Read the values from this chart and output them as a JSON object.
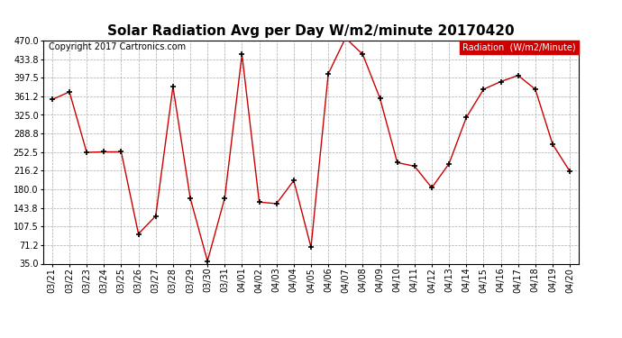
{
  "title": "Solar Radiation Avg per Day W/m2/minute 20170420",
  "copyright": "Copyright 2017 Cartronics.com",
  "legend_label": "Radiation  (W/m2/Minute)",
  "dates": [
    "03/21",
    "03/22",
    "03/23",
    "03/24",
    "03/25",
    "03/26",
    "03/27",
    "03/28",
    "03/29",
    "03/30",
    "03/31",
    "04/01",
    "04/02",
    "04/03",
    "04/04",
    "04/05",
    "04/06",
    "04/07",
    "04/08",
    "04/09",
    "04/10",
    "04/11",
    "04/12",
    "04/13",
    "04/14",
    "04/15",
    "04/16",
    "04/17",
    "04/18",
    "04/19",
    "04/20"
  ],
  "values": [
    355,
    370,
    252,
    253,
    253,
    93,
    128,
    380,
    163,
    40,
    163,
    443,
    155,
    152,
    197,
    67,
    405,
    475,
    443,
    357,
    232,
    225,
    183,
    230,
    320,
    375,
    390,
    402,
    375,
    268,
    215
  ],
  "line_color": "#cc0000",
  "marker_color": "#000000",
  "background_color": "#ffffff",
  "grid_color": "#aaaaaa",
  "ylim": [
    35.0,
    470.0
  ],
  "yticks": [
    35.0,
    71.2,
    107.5,
    143.8,
    180.0,
    216.2,
    252.5,
    288.8,
    325.0,
    361.2,
    397.5,
    433.8,
    470.0
  ],
  "title_fontsize": 11,
  "copyright_fontsize": 7,
  "legend_fontsize": 7,
  "legend_bg": "#cc0000",
  "legend_text_color": "#ffffff",
  "tick_fontsize": 7
}
